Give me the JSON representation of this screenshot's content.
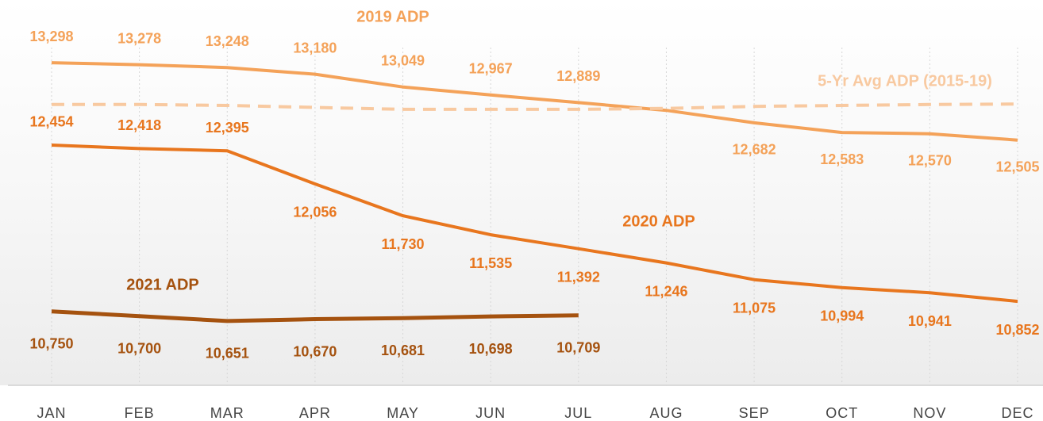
{
  "chart_data": {
    "type": "line",
    "categories": [
      "JAN",
      "FEB",
      "MAR",
      "APR",
      "MAY",
      "JUN",
      "JUL",
      "AUG",
      "SEP",
      "OCT",
      "NOV",
      "DEC"
    ],
    "ylim": [
      10000,
      13900
    ],
    "grid": true,
    "series": [
      {
        "name": "2019 ADP",
        "color": "#f4a259",
        "values": [
          13298,
          13278,
          13248,
          13180,
          13049,
          12967,
          12889,
          12810,
          12682,
          12583,
          12570,
          12505
        ],
        "value_labels": [
          "13,298",
          "13,278",
          "13,248",
          "13,180",
          "13,049",
          "12,967",
          "12,889",
          null,
          "12,682",
          "12,583",
          "12,570",
          "12,505"
        ]
      },
      {
        "name": "5-Yr Avg ADP (2015-19)",
        "color": "#f8c9a0",
        "dashed": true,
        "values": [
          12870,
          12870,
          12860,
          12840,
          12820,
          12820,
          12820,
          12830,
          12850,
          12860,
          12870,
          12875
        ]
      },
      {
        "name": "2020 ADP",
        "color": "#e8761e",
        "values": [
          12454,
          12418,
          12395,
          12056,
          11730,
          11535,
          11392,
          11246,
          11075,
          10994,
          10941,
          10852
        ],
        "value_labels": [
          "12,454",
          "12,418",
          "12,395",
          "12,056",
          "11,730",
          "11,535",
          "11,392",
          "11,246",
          "11,075",
          "10,994",
          "10,941",
          "10,852"
        ]
      },
      {
        "name": "2021 ADP",
        "color": "#a5520f",
        "values": [
          10750,
          10700,
          10651,
          10670,
          10681,
          10698,
          10709,
          null,
          null,
          null,
          null,
          null
        ],
        "value_labels": [
          "10,750",
          "10,700",
          "10,651",
          "10,670",
          "10,681",
          "10,698",
          "10,709",
          null,
          null,
          null,
          null,
          null
        ]
      }
    ]
  }
}
